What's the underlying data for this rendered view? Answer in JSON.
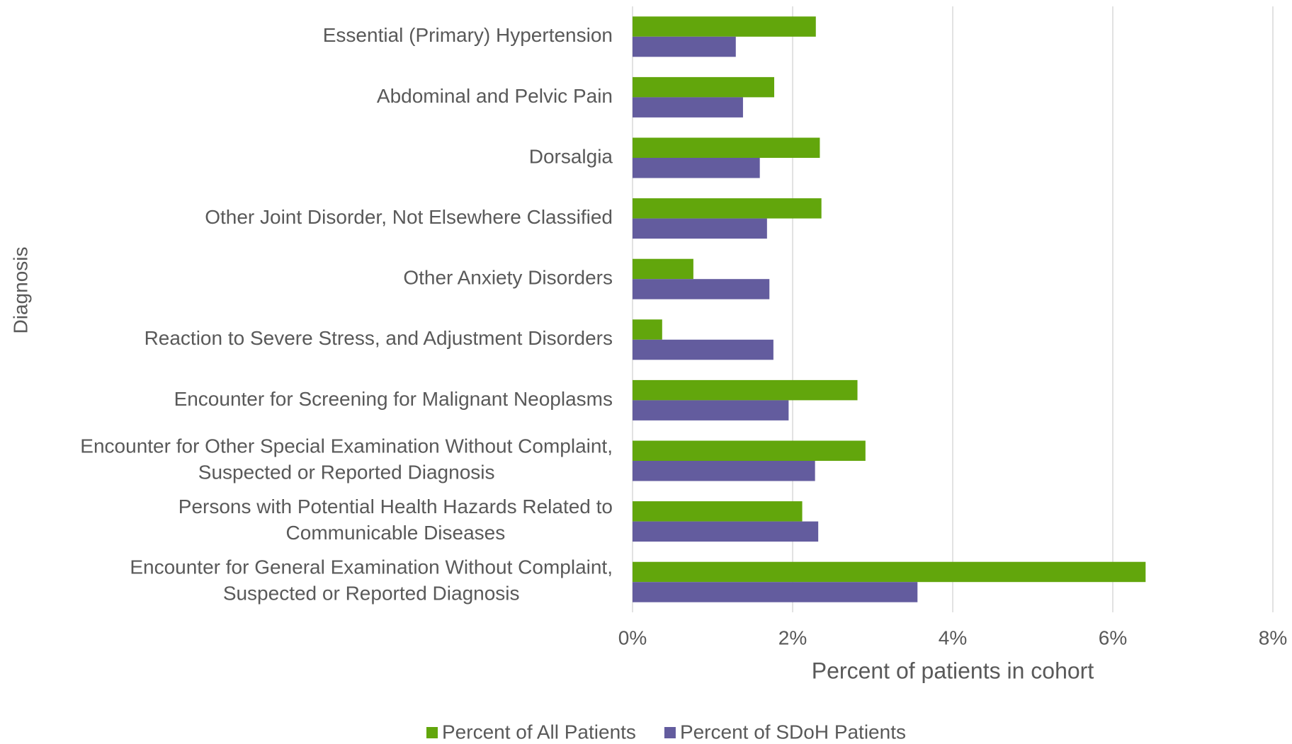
{
  "chart_data": {
    "type": "hbar",
    "x_label": "Percent of patients in cohort",
    "y_label": "Diagnosis",
    "categories": [
      "Essential (Primary) Hypertension",
      "Abdominal and Pelvic Pain",
      "Dorsalgia",
      "Other Joint Disorder, Not Elsewhere Classified",
      "Other Anxiety Disorders",
      "Reaction to Severe Stress, and Adjustment Disorders",
      "Encounter for Screening for Malignant Neoplasms",
      "Encounter for Other Special Examination Without Complaint, Suspected or Reported Diagnosis",
      "Persons with Potential Health Hazards Related to Communicable Diseases",
      "Encounter for General Examination Without Complaint, Suspected or Reported Diagnosis"
    ],
    "series": [
      {
        "name": "Percent of All Patients",
        "color": "#62a60c",
        "values": [
          2.29,
          1.77,
          2.34,
          2.36,
          0.76,
          0.37,
          2.81,
          2.91,
          2.12,
          6.41
        ]
      },
      {
        "name": "Percent of SDoH Patients",
        "color": "#635c9e",
        "values": [
          1.29,
          1.38,
          1.59,
          1.68,
          1.71,
          1.76,
          1.95,
          2.28,
          2.32,
          3.56
        ]
      }
    ],
    "xlim": [
      0,
      8
    ],
    "xticks": [
      {
        "value": 0,
        "label": "0%"
      },
      {
        "value": 2,
        "label": "2%"
      },
      {
        "value": 4,
        "label": "4%"
      },
      {
        "value": 6,
        "label": "6%"
      },
      {
        "value": 8,
        "label": "8%"
      }
    ],
    "grid": true,
    "legend": "bottom"
  }
}
